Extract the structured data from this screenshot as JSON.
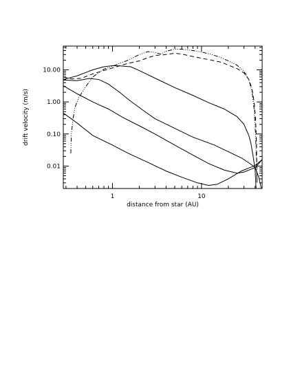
{
  "chart_data": {
    "type": "line",
    "xlabel": "distance from star (AU)",
    "ylabel": "drift velocity (m/s)",
    "xscale": "log",
    "yscale": "log",
    "xlim": [
      0.28,
      48
    ],
    "ylim": [
      0.002,
      55
    ],
    "x_ticks": [
      {
        "value": 1,
        "label": "1"
      },
      {
        "value": 10,
        "label": "10"
      }
    ],
    "y_ticks": [
      {
        "value": 0.01,
        "label": "0.01"
      },
      {
        "value": 0.1,
        "label": "0.10"
      },
      {
        "value": 1,
        "label": "1.00"
      },
      {
        "value": 10,
        "label": "10.00"
      }
    ],
    "grid": false,
    "series": [
      {
        "style": "solid",
        "points": [
          [
            0.28,
            5.0
          ],
          [
            0.4,
            6.5
          ],
          [
            0.6,
            10.0
          ],
          [
            0.8,
            12.5
          ],
          [
            1.0,
            13.5
          ],
          [
            1.2,
            13.3
          ],
          [
            1.6,
            12.5
          ],
          [
            2.0,
            9.5
          ],
          [
            3.0,
            5.5
          ],
          [
            5.0,
            2.8
          ],
          [
            8.0,
            1.6
          ],
          [
            12.0,
            0.95
          ],
          [
            18.0,
            0.6
          ],
          [
            25.0,
            0.35
          ],
          [
            30.0,
            0.2
          ],
          [
            34.0,
            0.09
          ],
          [
            36.0,
            0.05
          ],
          [
            38.0,
            0.02
          ],
          [
            40.0,
            0.008
          ],
          [
            41.0,
            0.002
          ]
        ]
      },
      {
        "style": "solid",
        "points": [
          [
            0.28,
            4.8
          ],
          [
            0.4,
            4.6
          ],
          [
            0.55,
            5.4
          ],
          [
            0.7,
            5.0
          ],
          [
            0.9,
            3.6
          ],
          [
            1.2,
            2.0
          ],
          [
            1.6,
            1.05
          ],
          [
            2.2,
            0.55
          ],
          [
            3.0,
            0.3
          ],
          [
            5.0,
            0.15
          ],
          [
            8.0,
            0.08
          ],
          [
            14.0,
            0.045
          ],
          [
            20.0,
            0.028
          ],
          [
            28.0,
            0.018
          ],
          [
            35.0,
            0.012
          ],
          [
            40.0,
            0.009
          ],
          [
            44.0,
            0.0045
          ],
          [
            47.0,
            0.002
          ]
        ]
      },
      {
        "style": "solid",
        "points": [
          [
            0.28,
            3.2
          ],
          [
            0.4,
            1.8
          ],
          [
            0.6,
            1.0
          ],
          [
            0.9,
            0.6
          ],
          [
            1.3,
            0.33
          ],
          [
            2.0,
            0.18
          ],
          [
            3.0,
            0.1
          ],
          [
            5.0,
            0.045
          ],
          [
            8.0,
            0.022
          ],
          [
            12.0,
            0.012
          ],
          [
            18.0,
            0.0075
          ],
          [
            25.0,
            0.006
          ],
          [
            30.0,
            0.0065
          ],
          [
            36.0,
            0.008
          ],
          [
            40.0,
            0.009
          ],
          [
            44.0,
            0.012
          ],
          [
            48.0,
            0.016
          ]
        ]
      },
      {
        "style": "solid",
        "points": [
          [
            0.28,
            0.45
          ],
          [
            0.4,
            0.22
          ],
          [
            0.6,
            0.09
          ],
          [
            1.0,
            0.045
          ],
          [
            1.5,
            0.025
          ],
          [
            2.5,
            0.013
          ],
          [
            4.0,
            0.007
          ],
          [
            6.0,
            0.0045
          ],
          [
            9.0,
            0.003
          ],
          [
            12.0,
            0.0025
          ],
          [
            15.0,
            0.0027
          ],
          [
            20.0,
            0.004
          ],
          [
            28.0,
            0.007
          ],
          [
            35.0,
            0.009
          ],
          [
            40.0,
            0.0105
          ],
          [
            44.0,
            0.013
          ],
          [
            48.0,
            0.016
          ]
        ]
      },
      {
        "style": "dashed",
        "points": [
          [
            0.28,
            6.0
          ],
          [
            0.35,
            5.2
          ],
          [
            0.45,
            5.5
          ],
          [
            0.6,
            7.5
          ],
          [
            0.8,
            9.5
          ],
          [
            1.0,
            11.5
          ],
          [
            1.5,
            16.0
          ],
          [
            2.0,
            19.0
          ],
          [
            2.5,
            24.0
          ],
          [
            3.0,
            28.0
          ],
          [
            4.0,
            30.0
          ],
          [
            5.0,
            33.0
          ],
          [
            6.0,
            31.0
          ],
          [
            8.0,
            26.0
          ],
          [
            10.0,
            23.0
          ],
          [
            13.0,
            20.0
          ],
          [
            17.0,
            17.0
          ],
          [
            20.0,
            14.0
          ],
          [
            25.0,
            11.0
          ],
          [
            30.0,
            8.0
          ],
          [
            34.0,
            5.0
          ],
          [
            37.0,
            2.5
          ],
          [
            39.0,
            1.0
          ],
          [
            40.5,
            0.3
          ],
          [
            41.5,
            0.05
          ],
          [
            42.0,
            0.003
          ]
        ]
      },
      {
        "style": "dashdot",
        "points": [
          [
            0.34,
            0.025
          ],
          [
            0.345,
            0.1
          ],
          [
            0.36,
            0.3
          ],
          [
            0.38,
            0.7
          ],
          [
            0.42,
            1.4
          ],
          [
            0.5,
            3.0
          ],
          [
            0.6,
            6.0
          ],
          [
            0.8,
            10.5
          ],
          [
            1.0,
            13.0
          ],
          [
            1.5,
            20.0
          ],
          [
            2.0,
            30.0
          ],
          [
            2.5,
            37.0
          ],
          [
            3.0,
            35.0
          ],
          [
            3.5,
            31.0
          ],
          [
            4.0,
            38.0
          ],
          [
            5.0,
            44.0
          ],
          [
            6.0,
            44.0
          ],
          [
            8.0,
            40.0
          ],
          [
            10.0,
            36.0
          ],
          [
            13.0,
            30.0
          ],
          [
            16.0,
            25.0
          ],
          [
            20.0,
            19.0
          ],
          [
            25.0,
            14.0
          ],
          [
            30.0,
            9.0
          ],
          [
            34.0,
            5.0
          ],
          [
            37.0,
            2.0
          ],
          [
            39.0,
            0.6
          ],
          [
            40.5,
            0.1
          ],
          [
            41.5,
            0.01
          ],
          [
            42.0,
            0.003
          ]
        ]
      }
    ]
  }
}
